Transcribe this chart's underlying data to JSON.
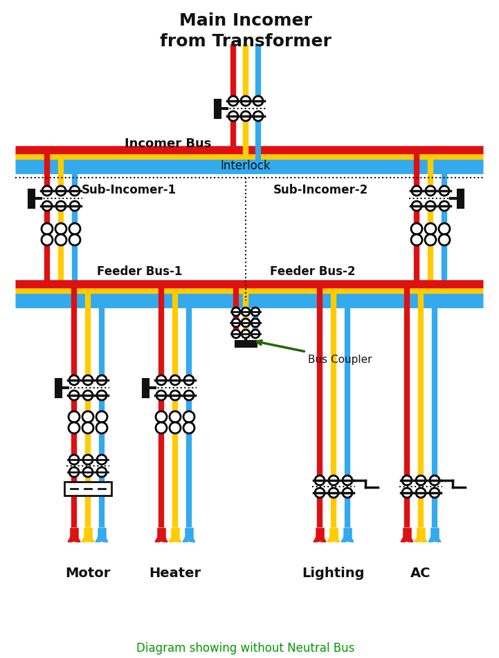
{
  "title_line1": "Main Incomer",
  "title_line2": "from Transformer",
  "subtitle": "Diagram showing without Neutral Bus",
  "subtitle_color": "#009900",
  "bg_color": "#ffffff",
  "RED": "#dd1111",
  "YEL": "#ffcc00",
  "BLU": "#33aaee",
  "BLK": "#111111",
  "GRN": "#226600",
  "lw": 6,
  "bw": 9,
  "fig_w": 7.21,
  "fig_h": 9.53,
  "labels": {
    "incomer_bus": "Incomer Bus",
    "interlock": "Interlock",
    "sub_inc_1": "Sub-Incomer-1",
    "sub_inc_2": "Sub-Incomer-2",
    "feeder_bus_1": "Feeder Bus-1",
    "feeder_bus_2": "Feeder Bus-2",
    "bus_coupler": "Bus Coupler",
    "motor": "Motor",
    "heater": "Heater",
    "lighting": "Lighting",
    "ac": "AC"
  }
}
